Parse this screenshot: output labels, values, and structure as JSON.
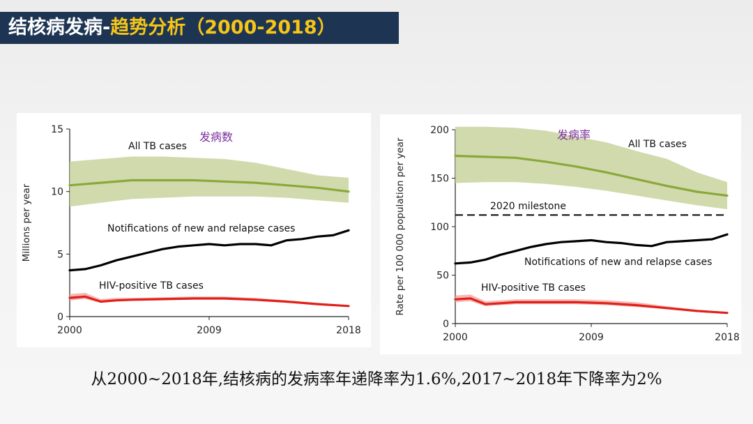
{
  "header": {
    "title_main": "结核病发病-",
    "title_accent": "趋势分析（2000-2018）"
  },
  "caption": "从2000~2018年,结核病的发病率年递降率为1.6%,2017~2018年下降率为2%",
  "colors": {
    "header_bg": "#1d3553",
    "accent": "#f5c518",
    "all_tb_line": "#8aa83a",
    "all_tb_band": "#c9d39f",
    "notifications": "#000000",
    "hiv_line": "#e0201b",
    "hiv_band": "#f2a6a0",
    "panel_label": "#7b2f9e"
  },
  "chart_data": [
    {
      "type": "line",
      "panel_label": "发病数",
      "ylabel": "Millions per year",
      "xlabel": "",
      "xlim": [
        2000,
        2018
      ],
      "ylim": [
        0,
        15
      ],
      "x_ticks": [
        2000,
        2009,
        2018
      ],
      "y_ticks": [
        0,
        5,
        10,
        15
      ],
      "grid": false,
      "series": [
        {
          "name": "All TB cases",
          "x": [
            2000,
            2002,
            2004,
            2006,
            2008,
            2010,
            2012,
            2014,
            2016,
            2018
          ],
          "values": [
            10.5,
            10.7,
            10.9,
            10.9,
            10.9,
            10.8,
            10.7,
            10.5,
            10.3,
            10.0
          ],
          "lower": [
            8.8,
            9.1,
            9.4,
            9.5,
            9.6,
            9.6,
            9.6,
            9.5,
            9.3,
            9.1
          ],
          "upper": [
            12.4,
            12.6,
            12.8,
            12.8,
            12.7,
            12.6,
            12.3,
            11.8,
            11.3,
            11.1
          ]
        },
        {
          "name": "Notifications of new and relapse cases",
          "x": [
            2000,
            2001,
            2002,
            2003,
            2004,
            2005,
            2006,
            2007,
            2008,
            2009,
            2010,
            2011,
            2012,
            2013,
            2014,
            2015,
            2016,
            2017,
            2018
          ],
          "values": [
            3.7,
            3.8,
            4.1,
            4.5,
            4.8,
            5.1,
            5.4,
            5.6,
            5.7,
            5.8,
            5.7,
            5.8,
            5.8,
            5.7,
            6.1,
            6.2,
            6.4,
            6.5,
            6.9
          ]
        },
        {
          "name": "HIV-positive TB cases",
          "x": [
            2000,
            2001,
            2002,
            2003,
            2004,
            2006,
            2008,
            2010,
            2012,
            2014,
            2016,
            2018
          ],
          "values": [
            1.5,
            1.6,
            1.2,
            1.3,
            1.35,
            1.4,
            1.45,
            1.45,
            1.35,
            1.2,
            1.0,
            0.85
          ],
          "lower": [
            1.3,
            1.4,
            1.1,
            1.2,
            1.25,
            1.3,
            1.35,
            1.35,
            1.25,
            1.1,
            0.95,
            0.8
          ],
          "upper": [
            1.8,
            1.9,
            1.4,
            1.5,
            1.5,
            1.55,
            1.6,
            1.6,
            1.5,
            1.3,
            1.1,
            0.9
          ]
        }
      ]
    },
    {
      "type": "line",
      "panel_label": "发病率",
      "ylabel": "Rate per 100 000 population per year",
      "xlabel": "",
      "xlim": [
        2000,
        2018
      ],
      "ylim": [
        0,
        200
      ],
      "x_ticks": [
        2000,
        2009,
        2018
      ],
      "y_ticks": [
        0,
        50,
        100,
        150,
        200
      ],
      "grid": false,
      "milestone": {
        "label": "2020 milestone",
        "value": 112
      },
      "series": [
        {
          "name": "All TB cases",
          "x": [
            2000,
            2002,
            2004,
            2006,
            2008,
            2010,
            2012,
            2014,
            2016,
            2018
          ],
          "values": [
            173,
            172,
            171,
            167,
            162,
            156,
            149,
            142,
            136,
            132
          ],
          "lower": [
            145,
            146,
            146,
            144,
            141,
            137,
            132,
            127,
            122,
            118
          ],
          "upper": [
            203,
            203,
            202,
            199,
            193,
            187,
            178,
            170,
            156,
            146
          ]
        },
        {
          "name": "Notifications of new and relapse cases",
          "x": [
            2000,
            2001,
            2002,
            2003,
            2004,
            2005,
            2006,
            2007,
            2008,
            2009,
            2010,
            2011,
            2012,
            2013,
            2014,
            2015,
            2016,
            2017,
            2018
          ],
          "values": [
            62,
            63,
            66,
            71,
            75,
            79,
            82,
            84,
            85,
            86,
            84,
            83,
            81,
            80,
            84,
            85,
            86,
            87,
            92
          ],
          "lower": [],
          "upper": []
        },
        {
          "name": "HIV-positive TB cases",
          "x": [
            2000,
            2001,
            2002,
            2003,
            2004,
            2006,
            2008,
            2010,
            2012,
            2014,
            2016,
            2018
          ],
          "values": [
            25,
            26,
            20,
            21,
            22,
            22,
            22,
            21,
            19,
            16,
            13,
            11
          ],
          "lower": [
            22,
            23,
            18,
            19,
            20,
            20,
            20,
            19,
            17,
            15,
            12,
            10
          ],
          "upper": [
            29,
            30,
            23,
            24,
            25,
            25,
            25,
            24,
            22,
            18,
            14,
            12
          ]
        }
      ]
    }
  ]
}
